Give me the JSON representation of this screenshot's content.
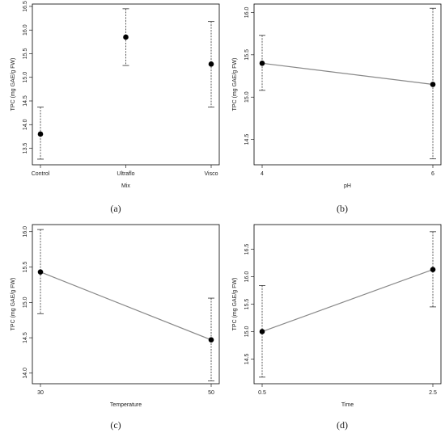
{
  "chart_data": [
    {
      "type": "scatter",
      "panel_label": "(a)",
      "xlabel": "Mix",
      "ylabel": "TPC (mg GAE/g FW)",
      "categories": [
        "Control",
        "Ultraflo",
        "Visco"
      ],
      "xticks": [
        "Control",
        "Ultraflo",
        "Visco"
      ],
      "ylim": [
        13.15,
        16.55
      ],
      "yticks": [
        "13.5",
        "14.0",
        "14.5",
        "15.0",
        "15.5",
        "16.0",
        "16.5"
      ],
      "connect_points": false,
      "series": [
        {
          "values": [
            13.8,
            15.85,
            15.28
          ],
          "lower": [
            13.27,
            15.25,
            14.37
          ],
          "upper": [
            14.37,
            16.45,
            16.18
          ]
        }
      ]
    },
    {
      "type": "line",
      "panel_label": "(b)",
      "xlabel": "pH",
      "ylabel": "TPC (mg GAE/g FW)",
      "categories": [
        "4",
        "6"
      ],
      "xticks": [
        "4",
        "6"
      ],
      "ylim": [
        14.2,
        16.1
      ],
      "yticks": [
        "14.5",
        "15.0",
        "15.5",
        "16.0"
      ],
      "connect_points": true,
      "series": [
        {
          "values": [
            15.4,
            15.15
          ],
          "lower": [
            15.08,
            14.27
          ],
          "upper": [
            15.73,
            16.05
          ]
        }
      ]
    },
    {
      "type": "line",
      "panel_label": "(c)",
      "xlabel": "Temperature",
      "ylabel": "TPC (mg GAE/g FW)",
      "categories": [
        "30",
        "50"
      ],
      "xticks": [
        "30",
        "50"
      ],
      "ylim": [
        13.85,
        16.1
      ],
      "yticks": [
        "14.0",
        "14.5",
        "15.0",
        "15.5",
        "16.0"
      ],
      "connect_points": true,
      "series": [
        {
          "values": [
            15.43,
            14.47
          ],
          "lower": [
            14.84,
            13.89
          ],
          "upper": [
            16.03,
            15.06
          ]
        }
      ]
    },
    {
      "type": "line",
      "panel_label": "(d)",
      "xlabel": "Time",
      "ylabel": "TPC (mg GAE/g FW)",
      "categories": [
        "0.5",
        "2.5"
      ],
      "xticks": [
        "0.5",
        "2.5"
      ],
      "ylim": [
        14.05,
        16.95
      ],
      "yticks": [
        "14.5",
        "15.0",
        "15.5",
        "16.0",
        "16.5"
      ],
      "connect_points": true,
      "series": [
        {
          "values": [
            15.0,
            16.13
          ],
          "lower": [
            14.17,
            15.45
          ],
          "upper": [
            15.84,
            16.82
          ]
        }
      ]
    }
  ]
}
